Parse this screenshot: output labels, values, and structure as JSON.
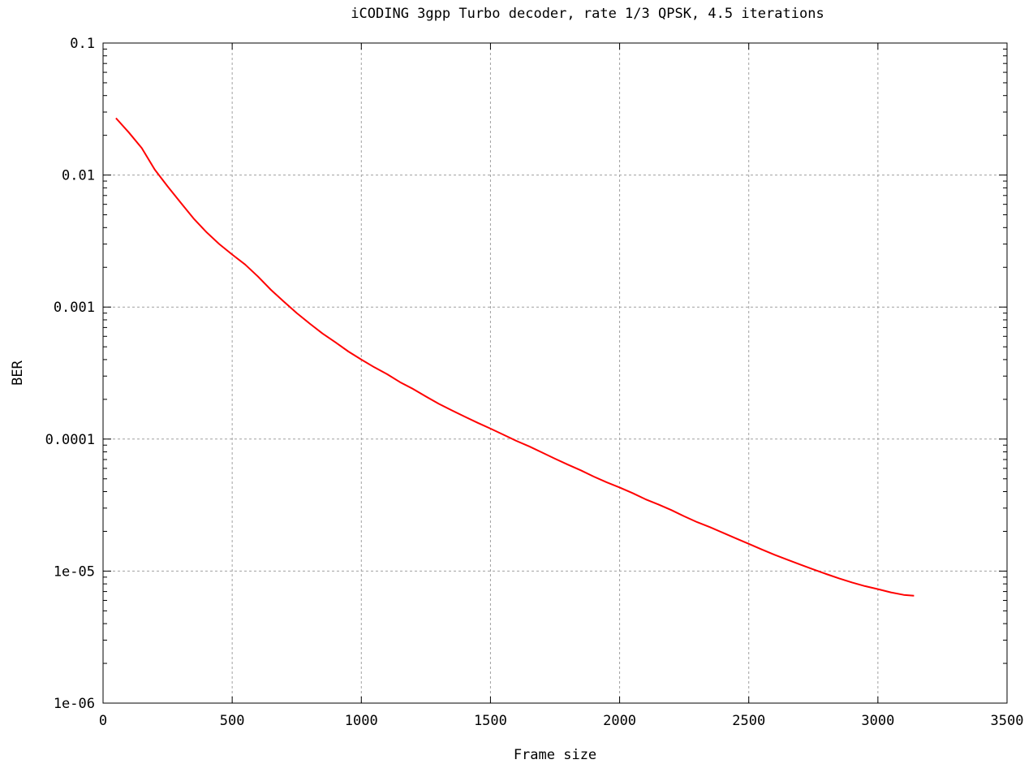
{
  "chart_data": {
    "type": "line",
    "title": "iCODING 3gpp Turbo decoder, rate 1/3 QPSK, 4.5 iterations",
    "xlabel": "Frame size",
    "ylabel": "BER",
    "xlim": [
      0,
      3500
    ],
    "ylim": [
      1e-06,
      0.1
    ],
    "yscale": "log",
    "grid": true,
    "legend": "none",
    "x_ticks": [
      0,
      500,
      1000,
      1500,
      2000,
      2500,
      3000,
      3500
    ],
    "x_tick_labels": [
      "0",
      "500",
      "1000",
      "1500",
      "2000",
      "2500",
      "3000",
      "3500"
    ],
    "y_ticks": [
      0.1,
      0.01,
      0.001,
      0.0001,
      1e-05,
      1e-06
    ],
    "y_tick_labels": [
      "0.1",
      "0.01",
      "0.001",
      "0.0001",
      "1e-05",
      "1e-06"
    ],
    "series": [
      {
        "color": "#ff0000",
        "x": [
          50,
          100,
          150,
          200,
          250,
          300,
          350,
          400,
          450,
          500,
          550,
          600,
          650,
          700,
          750,
          800,
          850,
          900,
          950,
          1000,
          1050,
          1100,
          1150,
          1200,
          1250,
          1300,
          1350,
          1400,
          1450,
          1500,
          1550,
          1600,
          1650,
          1700,
          1750,
          1800,
          1850,
          1900,
          1950,
          2000,
          2050,
          2100,
          2150,
          2200,
          2250,
          2300,
          2350,
          2400,
          2450,
          2500,
          2550,
          2600,
          2650,
          2700,
          2750,
          2800,
          2850,
          2900,
          2950,
          3000,
          3050,
          3100,
          3140
        ],
        "values": [
          0.027,
          0.021,
          0.016,
          0.011,
          0.0082,
          0.0062,
          0.0047,
          0.0037,
          0.003,
          0.0025,
          0.0021,
          0.0017,
          0.00135,
          0.0011,
          0.0009,
          0.00075,
          0.00063,
          0.00054,
          0.00046,
          0.0004,
          0.00035,
          0.00031,
          0.00027,
          0.00024,
          0.00021,
          0.000185,
          0.000165,
          0.000148,
          0.000133,
          0.00012,
          0.000108,
          9.7e-05,
          8.8e-05,
          7.9e-05,
          7.1e-05,
          6.4e-05,
          5.8e-05,
          5.2e-05,
          4.7e-05,
          4.3e-05,
          3.9e-05,
          3.5e-05,
          3.2e-05,
          2.9e-05,
          2.6e-05,
          2.35e-05,
          2.15e-05,
          1.95e-05,
          1.77e-05,
          1.61e-05,
          1.46e-05,
          1.33e-05,
          1.22e-05,
          1.12e-05,
          1.03e-05,
          9.5e-06,
          8.8e-06,
          8.2e-06,
          7.7e-06,
          7.3e-06,
          6.9e-06,
          6.6e-06,
          6.5e-06
        ]
      }
    ]
  }
}
